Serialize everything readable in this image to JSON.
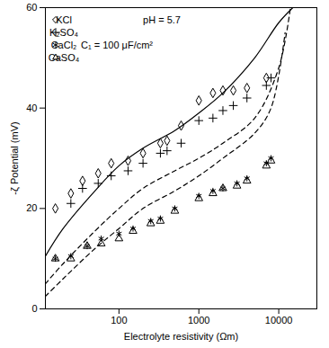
{
  "chart_data": {
    "type": "scatter",
    "x_label": "Electrolyte resistivity (Ωm)",
    "y_label": "-ζ Potential (mV)",
    "annotations": [
      "pH = 5.7",
      "C₁ = 100 μF/cm²"
    ],
    "log": "x",
    "legend": "top-left",
    "grid": false,
    "xlim": [
      12,
      30000
    ],
    "xticks": [
      100,
      1000,
      10000
    ],
    "ylim": [
      0,
      60
    ],
    "yticks": [
      0,
      20,
      40,
      60
    ],
    "series": [
      {
        "name": "KCl",
        "type": "scatter",
        "marker": "diamond",
        "color": "#000000",
        "x": [
          16,
          25,
          35,
          55,
          80,
          130,
          200,
          330,
          400,
          600,
          1000,
          1500,
          2000,
          2700,
          4000,
          7000
        ],
        "values": [
          20,
          23,
          25.5,
          27,
          29,
          29.5,
          31,
          33,
          33.5,
          36.5,
          41.5,
          43,
          43.5,
          43.5,
          44,
          46
        ]
      },
      {
        "name": "K₂SO₄",
        "type": "scatter",
        "marker": "plus",
        "color": "#000000",
        "x": [
          25,
          35,
          55,
          80,
          130,
          200,
          330,
          400,
          600,
          1000,
          1500,
          2000,
          2700,
          4000,
          7000,
          8000
        ],
        "values": [
          21,
          24,
          25,
          26.5,
          27.5,
          29,
          31,
          31.5,
          33,
          37.5,
          38,
          39.5,
          40.5,
          42,
          44.5,
          46
        ]
      },
      {
        "name": "CaCl₂",
        "type": "scatter",
        "marker": "asterisk",
        "color": "#000000",
        "x": [
          16,
          25,
          40,
          60,
          100,
          150,
          250,
          330,
          500,
          1000,
          1500,
          2000,
          3000,
          4000,
          7000,
          8000
        ],
        "values": [
          10,
          10.5,
          12.5,
          14,
          15,
          16,
          17.5,
          18,
          20,
          22.5,
          23.5,
          24,
          25,
          26,
          29,
          30
        ]
      },
      {
        "name": "CaSO₄",
        "type": "scatter",
        "marker": "triangle",
        "color": "#000000",
        "x": [
          16,
          25,
          40,
          60,
          100,
          150,
          250,
          330,
          500,
          1000,
          1500,
          2000,
          3000,
          4000,
          7000,
          8000
        ],
        "values": [
          10,
          10,
          12.5,
          13,
          14,
          15.5,
          17,
          17.5,
          19.5,
          22,
          23,
          24,
          24.5,
          25.5,
          28.5,
          29.5
        ]
      },
      {
        "type": "line",
        "line_style": "solid",
        "color": "#000000",
        "x": [
          12,
          20,
          50,
          100,
          200,
          500,
          1000,
          2000,
          5000,
          10000,
          15000
        ],
        "values": [
          10.5,
          16,
          23.5,
          28.5,
          32,
          35.5,
          39,
          43,
          50,
          57,
          60
        ]
      },
      {
        "type": "line",
        "line_style": "dashed",
        "color": "#000000",
        "x": [
          12,
          20,
          50,
          100,
          200,
          500,
          1000,
          2000,
          5000,
          10000,
          14000
        ],
        "values": [
          5,
          9,
          15.5,
          20,
          24,
          27.5,
          30,
          33,
          38,
          48,
          60
        ]
      },
      {
        "type": "line",
        "line_style": "dashed",
        "color": "#000000",
        "x": [
          12,
          20,
          50,
          100,
          200,
          500,
          1000,
          2000,
          5000,
          8000,
          12000
        ],
        "values": [
          2.5,
          6,
          12,
          16,
          20,
          23.5,
          26.5,
          30,
          35,
          40,
          55
        ]
      }
    ]
  }
}
